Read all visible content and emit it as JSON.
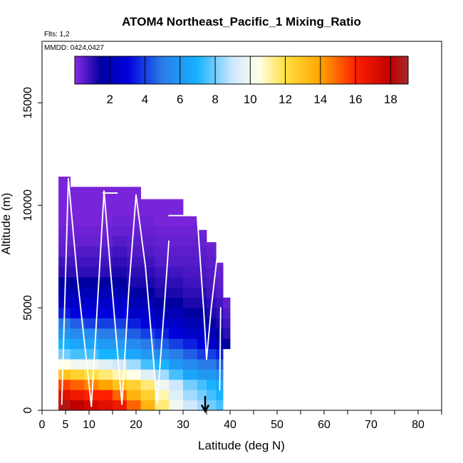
{
  "chart_data": {
    "type": "heatmap",
    "title": "ATOM4 Northeast_Pacific_1 Mixing_Ratio",
    "subtitle_flights": "Flts: 1,2",
    "subtitle_dates": "MMDD: 0424,0427",
    "xlabel": "Latitude (deg N)",
    "ylabel": "Altitude (m)",
    "xlim": [
      0,
      85
    ],
    "ylim": [
      0,
      18000
    ],
    "x_ticks": [
      0,
      5,
      10,
      20,
      30,
      40,
      50,
      60,
      70,
      80
    ],
    "y_ticks": [
      0,
      5000,
      10000,
      15000
    ],
    "colorbar": {
      "min": 0,
      "max": 19,
      "tick_values": [
        2,
        4,
        6,
        8,
        10,
        12,
        14,
        16,
        18
      ],
      "stops": [
        {
          "v": 0,
          "c": "#8a2be2"
        },
        {
          "v": 1.5,
          "c": "#0000a0"
        },
        {
          "v": 3,
          "c": "#0000dd"
        },
        {
          "v": 5,
          "c": "#2a7de8"
        },
        {
          "v": 7,
          "c": "#17b3ff"
        },
        {
          "v": 9,
          "c": "#cfe8ff"
        },
        {
          "v": 10.5,
          "c": "#ffffe8"
        },
        {
          "v": 12,
          "c": "#ffe040"
        },
        {
          "v": 14,
          "c": "#ffa500"
        },
        {
          "v": 16,
          "c": "#ff2000"
        },
        {
          "v": 18,
          "c": "#c00000"
        },
        {
          "v": 19,
          "c": "#a52a2a"
        }
      ]
    },
    "grid": false,
    "altitude_bins_m": [
      0,
      500,
      1000,
      1500,
      2000,
      2500,
      3000,
      3500,
      4000,
      4500,
      5000,
      5500,
      6000,
      6500,
      7000,
      7500,
      8000,
      8500,
      9000,
      9500,
      10000,
      10500,
      11000
    ],
    "columns": [
      {
        "lat": [
          3.5,
          6
        ],
        "top": 11400,
        "values": [
          18.5,
          17,
          15.5,
          13,
          10.5,
          8,
          7,
          6,
          5,
          3.5,
          2.5,
          2,
          1.5,
          1,
          0.8,
          0.5,
          0.4,
          0.3,
          0.2,
          0.2,
          0.2,
          0.2,
          0.2
        ]
      },
      {
        "lat": [
          6,
          9
        ],
        "top": 10900,
        "values": [
          18,
          16.5,
          15,
          12.5,
          10,
          7.5,
          6.5,
          5.5,
          4.5,
          3,
          2.5,
          2,
          1.5,
          1,
          0.8,
          0.6,
          0.4,
          0.3,
          0.2,
          0.2,
          0.2,
          0.2
        ]
      },
      {
        "lat": [
          9,
          12
        ],
        "top": 10900,
        "values": [
          17.5,
          16,
          14.5,
          12,
          10,
          7.5,
          6.5,
          5.5,
          4,
          3,
          2.5,
          2,
          1.5,
          1,
          0.8,
          0.6,
          0.4,
          0.3,
          0.2,
          0.2,
          0.2,
          0.2
        ]
      },
      {
        "lat": [
          12,
          15
        ],
        "top": 10900,
        "values": [
          17,
          16,
          14,
          11.5,
          9.5,
          7,
          6,
          5,
          4,
          3,
          2.5,
          2,
          1.5,
          1,
          0.8,
          0.6,
          0.4,
          0.3,
          0.2,
          0.2,
          0.2,
          0.2
        ]
      },
      {
        "lat": [
          15,
          18
        ],
        "top": 10900,
        "values": [
          16.5,
          15,
          13,
          11,
          9,
          7,
          6,
          5,
          4,
          3,
          2.5,
          2,
          1.5,
          1.2,
          1,
          0.8,
          0.6,
          0.4,
          0.3,
          0.2,
          0.2,
          0.2
        ]
      },
      {
        "lat": [
          18,
          21
        ],
        "top": 10900,
        "values": [
          15,
          13.5,
          12.5,
          10.5,
          8.5,
          6.5,
          5.5,
          4.5,
          3.5,
          2.5,
          2,
          1.5,
          1.2,
          1,
          0.8,
          0.6,
          0.5,
          0.4,
          0.3,
          0.2,
          0.2,
          0.2
        ]
      },
      {
        "lat": [
          21,
          24
        ],
        "top": 10300,
        "values": [
          13.5,
          12.5,
          11.5,
          9.5,
          7.5,
          6,
          5,
          4,
          3,
          2.5,
          2,
          1.5,
          1.2,
          1,
          0.8,
          0.6,
          0.5,
          0.4,
          0.3,
          0.2,
          0.2
        ]
      },
      {
        "lat": [
          24,
          27
        ],
        "top": 10300,
        "values": [
          11.5,
          11,
          10,
          8.5,
          7,
          5.5,
          4.5,
          3.5,
          2.5,
          2,
          1.5,
          1.2,
          1,
          0.8,
          0.6,
          0.5,
          0.4,
          0.3,
          0.2,
          0.2,
          0.2
        ]
      },
      {
        "lat": [
          27,
          30
        ],
        "top": 10300,
        "values": [
          10,
          9.5,
          9,
          7.5,
          6,
          5,
          4,
          3,
          2.5,
          2,
          1.5,
          1.2,
          1,
          0.8,
          0.6,
          0.5,
          0.4,
          0.3,
          0.2,
          0.2,
          0.2
        ]
      },
      {
        "lat": [
          30,
          33
        ],
        "top": 9500,
        "values": [
          9,
          8.5,
          8,
          6.5,
          5.5,
          4.5,
          3.5,
          2.5,
          2,
          1.5,
          1.2,
          1,
          0.8,
          0.7,
          0.6,
          0.5,
          0.4,
          0.3,
          0.2
        ]
      },
      {
        "lat": [
          33,
          35
        ],
        "top": 8800,
        "values": [
          8.5,
          8,
          7.5,
          6,
          5,
          4,
          3,
          2.5,
          2,
          1.5,
          1.2,
          1,
          0.8,
          0.7,
          0.6,
          0.5,
          0.4,
          0.3
        ]
      },
      {
        "lat": [
          35,
          37
        ],
        "top": 8200,
        "values": [
          8,
          7.5,
          7,
          6,
          5,
          4,
          2.5,
          2,
          1.5,
          1.2,
          1,
          0.8,
          0.7,
          0.6,
          0.5,
          0.4,
          0.3
        ]
      },
      {
        "lat": [
          37,
          38.5
        ],
        "top": 7200,
        "values": [
          7.5,
          7,
          6.5,
          5.5,
          4.5,
          3.5,
          2,
          1.5,
          1.2,
          1,
          0.8,
          0.6,
          0.5,
          0.4,
          0.3
        ]
      },
      {
        "lat": [
          38.5,
          40
        ],
        "top": 5500,
        "values": [
          0,
          0,
          0,
          0,
          0,
          0,
          1.5,
          1,
          0.8,
          0.6,
          0.4
        ]
      }
    ],
    "flight_tracks": [
      [
        [
          4.2,
          300
        ],
        [
          4.8,
          5000
        ],
        [
          5.6,
          11300
        ]
      ],
      [
        [
          5.6,
          11300
        ],
        [
          7.5,
          6500
        ],
        [
          10.5,
          200
        ]
      ],
      [
        [
          10.5,
          200
        ],
        [
          12,
          6000
        ],
        [
          13.2,
          10700
        ]
      ],
      [
        [
          13.2,
          10700
        ],
        [
          14.5,
          7000
        ],
        [
          17,
          300
        ]
      ],
      [
        [
          17,
          300
        ],
        [
          18.5,
          6000
        ],
        [
          20,
          10500
        ]
      ],
      [
        [
          20,
          10500
        ],
        [
          22,
          7000
        ],
        [
          24.5,
          300
        ]
      ],
      [
        [
          24.5,
          300
        ],
        [
          26,
          5000
        ],
        [
          27,
          8300
        ]
      ],
      [
        [
          27,
          9500
        ],
        [
          33,
          9500
        ]
      ],
      [
        [
          33,
          9500
        ],
        [
          34.5,
          4500
        ],
        [
          35,
          2500
        ]
      ],
      [
        [
          35,
          2500
        ],
        [
          36,
          5000
        ],
        [
          37.5,
          8000
        ]
      ],
      [
        [
          37.8,
          1000
        ],
        [
          38,
          5000
        ]
      ],
      [
        [
          13,
          10600
        ],
        [
          16,
          10600
        ]
      ]
    ],
    "marker": {
      "lat": 34.7,
      "altitude_top": 700,
      "altitude_bottom": -50,
      "symbol": "arrow-down"
    }
  }
}
